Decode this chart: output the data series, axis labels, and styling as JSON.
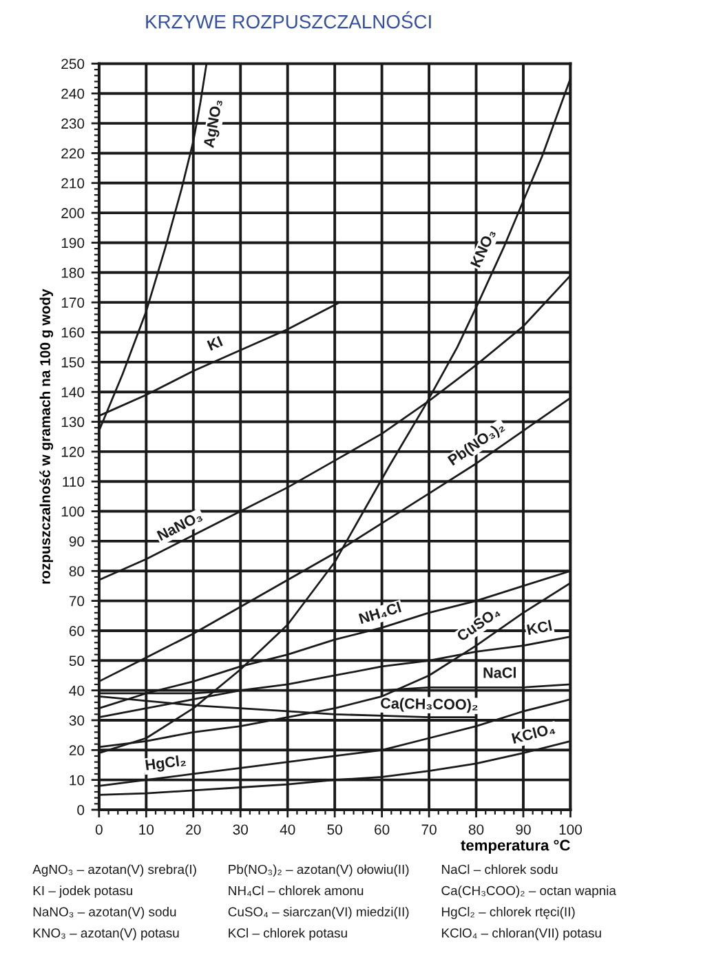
{
  "chart_data": {
    "type": "line",
    "title": "KRZYWE ROZPUSZCZALNOŚCI",
    "xlabel": "temperatura °C",
    "ylabel": "rozpuszczalność w gramach na 100 g wody",
    "annotations": [
      "AgNO₃ – azotan(V) srebra(I)",
      "KI – jodek potasu",
      "NaNO₃ – azotan(V) sodu",
      "KNO₃ – azotan(V) potasu",
      "Pb(NO₃)₂ – azotan(V) ołowiu(II)",
      "NH₄Cl – chlorek amonu",
      "CuSO₄ – siarczan(VI) miedzi(II)",
      "KCl – chlorek potasu",
      "NaCl – chlorek sodu",
      "Ca(CH₃COO)₂ – octan wapnia",
      "HgCl₂ – chlorek rtęci(II)",
      "KClO₄ – chloran(VII) potasu"
    ],
    "series": [
      {
        "name": "AgNO₃",
        "color": "#1a1a1a",
        "x": [
          0,
          5,
          10,
          14,
          17.5,
          20,
          21.5,
          22.8
        ],
        "values": [
          127,
          146,
          167,
          188,
          208,
          224,
          237,
          250
        ]
      },
      {
        "name": "KI",
        "color": "#1a1a1a",
        "x": [
          0,
          10,
          20,
          30,
          40,
          51
        ],
        "values": [
          132,
          139,
          147,
          154,
          161,
          170
        ]
      },
      {
        "name": "NaNO₃",
        "color": "#1a1a1a",
        "x": [
          0,
          10,
          20,
          30,
          40,
          50,
          60,
          70,
          80,
          90,
          100
        ],
        "values": [
          77,
          84,
          92,
          100,
          108,
          117,
          126,
          137,
          149,
          162,
          179
        ]
      },
      {
        "name": "KNO₃",
        "color": "#1a1a1a",
        "x": [
          0,
          10,
          20,
          30,
          40,
          50,
          61.5,
          69,
          76,
          80.5,
          86,
          94,
          100
        ],
        "values": [
          19,
          24,
          34,
          47,
          62,
          83,
          115,
          135,
          155,
          170,
          189,
          219,
          245
        ]
      },
      {
        "name": "Pb(NO₃)₂",
        "color": "#1a1a1a",
        "x": [
          0,
          10,
          20,
          30,
          40,
          50,
          60,
          70,
          80,
          90,
          100
        ],
        "values": [
          43,
          51,
          59,
          68,
          77,
          86,
          96,
          106,
          116,
          127,
          138
        ]
      },
      {
        "name": "NH₄Cl",
        "color": "#1a1a1a",
        "x": [
          0,
          10,
          20,
          30,
          40,
          50,
          60,
          70,
          80,
          90,
          100
        ],
        "values": [
          34,
          39,
          43,
          48,
          52,
          57,
          61,
          66,
          70,
          75,
          80
        ]
      },
      {
        "name": "CuSO₄",
        "color": "#1a1a1a",
        "x": [
          0,
          10,
          20,
          30,
          40,
          50,
          60,
          70,
          80,
          90,
          100
        ],
        "values": [
          21,
          23,
          26,
          28,
          31,
          34,
          38,
          45,
          55,
          66,
          76
        ]
      },
      {
        "name": "KCl",
        "color": "#1a1a1a",
        "x": [
          0,
          10,
          20,
          30,
          40,
          50,
          60,
          70,
          80,
          90,
          100
        ],
        "values": [
          31,
          34,
          37,
          40,
          42,
          45,
          48,
          50,
          53,
          55,
          58
        ]
      },
      {
        "name": "NaCl",
        "color": "#1a1a1a",
        "x": [
          0,
          10,
          20,
          30,
          40,
          50,
          60,
          70,
          80,
          90,
          100
        ],
        "values": [
          39,
          39,
          39,
          40,
          40,
          40,
          40,
          41,
          41,
          41,
          42
        ]
      },
      {
        "name": "Ca(CH₃COO)₂",
        "color": "#1a1a1a",
        "x": [
          0,
          10,
          20,
          30,
          40,
          50,
          60,
          70,
          80
        ],
        "values": [
          38,
          36.5,
          35,
          34,
          33,
          32,
          31.5,
          31,
          31
        ]
      },
      {
        "name": "HgCl₂",
        "color": "#1a1a1a",
        "x": [
          0,
          10,
          20,
          30,
          40,
          50,
          60,
          70,
          80,
          90,
          100
        ],
        "values": [
          8,
          10,
          12,
          14,
          16,
          18,
          20,
          24,
          28,
          33,
          37
        ]
      },
      {
        "name": "KClO₄",
        "color": "#1a1a1a",
        "x": [
          0,
          10,
          20,
          30,
          40,
          50,
          60,
          70,
          80,
          90,
          100
        ],
        "values": [
          5,
          5.5,
          6.5,
          7.5,
          8.5,
          10,
          11,
          13,
          15.5,
          19,
          23
        ]
      }
    ],
    "xlim": [
      0,
      100
    ],
    "ylim": [
      0,
      250
    ],
    "xticks": [
      0,
      {
        "value": 2,
        "label": null
      },
      {
        "value": 4,
        "label": null
      },
      {
        "value": 6,
        "label": null
      },
      {
        "value": 8,
        "label": null
      },
      10,
      {
        "value": 12,
        "label": null
      },
      {
        "value": 14,
        "label": null
      },
      {
        "value": 16,
        "label": null
      },
      {
        "value": 18,
        "label": null
      },
      20,
      {
        "value": 22,
        "label": null
      },
      {
        "value": 24,
        "label": null
      },
      {
        "value": 26,
        "label": null
      },
      {
        "value": 28,
        "label": null
      },
      30,
      {
        "value": 32,
        "label": null
      },
      {
        "value": 34,
        "label": null
      },
      {
        "value": 36,
        "label": null
      },
      {
        "value": 38,
        "label": null
      },
      40,
      {
        "value": 42,
        "label": null
      },
      {
        "value": 44,
        "label": null
      },
      {
        "value": 46,
        "label": null
      },
      {
        "value": 48,
        "label": null
      },
      50,
      {
        "value": 52,
        "label": null
      },
      {
        "value": 54,
        "label": null
      },
      {
        "value": 56,
        "label": null
      },
      {
        "value": 58,
        "label": null
      },
      60,
      {
        "value": 62,
        "label": null
      },
      {
        "value": 64,
        "label": null
      },
      {
        "value": 66,
        "label": null
      },
      {
        "value": 68,
        "label": null
      },
      70,
      {
        "value": 72,
        "label": null
      },
      {
        "value": 74,
        "label": null
      },
      {
        "value": 76,
        "label": null
      },
      {
        "value": 78,
        "label": null
      },
      80,
      {
        "value": 82,
        "label": null
      },
      {
        "value": 84,
        "label": null
      },
      {
        "value": 86,
        "label": null
      },
      {
        "value": 88,
        "label": null
      },
      90,
      {
        "value": 92,
        "label": null
      },
      {
        "value": 94,
        "label": null
      },
      {
        "value": 96,
        "label": null
      },
      {
        "value": 98,
        "label": null
      },
      100
    ],
    "yticks": [
      0,
      {
        "value": 2,
        "label": null
      },
      {
        "value": 4,
        "label": null
      },
      {
        "value": 6,
        "label": null
      },
      {
        "value": 8,
        "label": null
      },
      10,
      {
        "value": 12,
        "label": null
      },
      {
        "value": 14,
        "label": null
      },
      {
        "value": 16,
        "label": null
      },
      {
        "value": 18,
        "label": null
      },
      20,
      {
        "value": 22,
        "label": null
      },
      {
        "value": 24,
        "label": null
      },
      {
        "value": 26,
        "label": null
      },
      {
        "value": 28,
        "label": null
      },
      30,
      {
        "value": 32,
        "label": null
      },
      {
        "value": 34,
        "label": null
      },
      {
        "value": 36,
        "label": null
      },
      {
        "value": 38,
        "label": null
      },
      40,
      {
        "value": 42,
        "label": null
      },
      {
        "value": 44,
        "label": null
      },
      {
        "value": 46,
        "label": null
      },
      {
        "value": 48,
        "label": null
      },
      50,
      {
        "value": 52,
        "label": null
      },
      {
        "value": 54,
        "label": null
      },
      {
        "value": 56,
        "label": null
      },
      {
        "value": 58,
        "label": null
      },
      60,
      {
        "value": 62,
        "label": null
      },
      {
        "value": 64,
        "label": null
      },
      {
        "value": 66,
        "label": null
      },
      {
        "value": 68,
        "label": null
      },
      70,
      {
        "value": 72,
        "label": null
      },
      {
        "value": 74,
        "label": null
      },
      {
        "value": 76,
        "label": null
      },
      {
        "value": 78,
        "label": null
      },
      80,
      {
        "value": 82,
        "label": null
      },
      {
        "value": 84,
        "label": null
      },
      {
        "value": 86,
        "label": null
      },
      {
        "value": 88,
        "label": null
      },
      90,
      {
        "value": 92,
        "label": null
      },
      {
        "value": 94,
        "label": null
      },
      {
        "value": 96,
        "label": null
      },
      {
        "value": 98,
        "label": null
      },
      100,
      {
        "value": 102,
        "label": null
      },
      {
        "value": 104,
        "label": null
      },
      {
        "value": 106,
        "label": null
      },
      {
        "value": 108,
        "label": null
      },
      110,
      {
        "value": 112,
        "label": null
      },
      {
        "value": 114,
        "label": null
      },
      {
        "value": 116,
        "label": null
      },
      {
        "value": 118,
        "label": null
      },
      120,
      {
        "value": 122,
        "label": null
      },
      {
        "value": 124,
        "label": null
      },
      {
        "value": 126,
        "label": null
      },
      {
        "value": 128,
        "label": null
      },
      130,
      {
        "value": 132,
        "label": null
      },
      {
        "value": 134,
        "label": null
      },
      {
        "value": 136,
        "label": null
      },
      {
        "value": 138,
        "label": null
      },
      140,
      {
        "value": 142,
        "label": null
      },
      {
        "value": 144,
        "label": null
      },
      {
        "value": 146,
        "label": null
      },
      {
        "value": 148,
        "label": null
      },
      150,
      {
        "value": 152,
        "label": null
      },
      {
        "value": 154,
        "label": null
      },
      {
        "value": 156,
        "label": null
      },
      {
        "value": 158,
        "label": null
      },
      160,
      {
        "value": 162,
        "label": null
      },
      {
        "value": 164,
        "label": null
      },
      {
        "value": 166,
        "label": null
      },
      {
        "value": 168,
        "label": null
      },
      170,
      {
        "value": 172,
        "label": null
      },
      {
        "value": 174,
        "label": null
      },
      {
        "value": 176,
        "label": null
      },
      {
        "value": 178,
        "label": null
      },
      180,
      {
        "value": 182,
        "label": null
      },
      {
        "value": 184,
        "label": null
      },
      {
        "value": 186,
        "label": null
      },
      {
        "value": 188,
        "label": null
      },
      190,
      {
        "value": 192,
        "label": null
      },
      {
        "value": 194,
        "label": null
      },
      {
        "value": 196,
        "label": null
      },
      {
        "value": 198,
        "label": null
      },
      200,
      {
        "value": 202,
        "label": null
      },
      {
        "value": 204,
        "label": null
      },
      {
        "value": 206,
        "label": null
      },
      {
        "value": 208,
        "label": null
      },
      210,
      {
        "value": 212,
        "label": null
      },
      {
        "value": 214,
        "label": null
      },
      {
        "value": 216,
        "label": null
      },
      {
        "value": 218,
        "label": null
      },
      220,
      {
        "value": 222,
        "label": null
      },
      {
        "value": 224,
        "label": null
      },
      {
        "value": 226,
        "label": null
      },
      {
        "value": 228,
        "label": null
      },
      230,
      {
        "value": 232,
        "label": null
      },
      {
        "value": 234,
        "label": null
      },
      {
        "value": 236,
        "label": null
      },
      {
        "value": 238,
        "label": null
      },
      240,
      {
        "value": 242,
        "label": null
      },
      {
        "value": 244,
        "label": null
      },
      {
        "value": 246,
        "label": null
      },
      {
        "value": 248,
        "label": null
      },
      250
    ],
    "grid": true,
    "line_style": "solid"
  }
}
